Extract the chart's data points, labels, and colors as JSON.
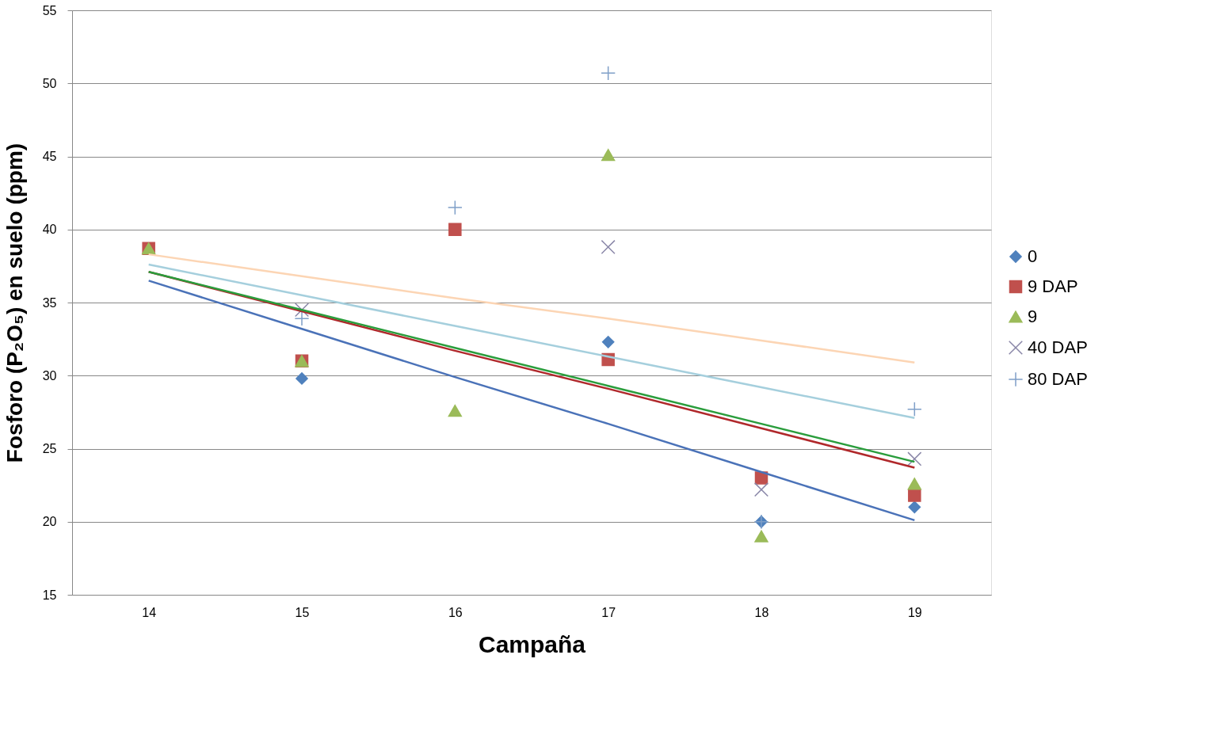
{
  "chart_data": {
    "type": "scatter",
    "xlabel": "Campaña",
    "ylabel": "Fosforo (P₂O₅) en suelo (ppm)",
    "x": [
      14,
      15,
      16,
      17,
      18,
      19
    ],
    "xlim": [
      13.5,
      19.5
    ],
    "xticks": [
      14,
      15,
      16,
      17,
      18,
      19
    ],
    "ylim": [
      15,
      55
    ],
    "yticks": [
      15,
      20,
      25,
      30,
      35,
      40,
      45,
      50,
      55
    ],
    "grid": "y",
    "legend": "right",
    "series": [
      {
        "name": "0",
        "color": "#4f81bd",
        "marker": "diamond",
        "values": [
          null,
          29.8,
          null,
          32.3,
          20.0,
          21.0
        ]
      },
      {
        "name": "9 DAP",
        "color": "#c0504d",
        "marker": "square",
        "values": [
          38.7,
          31.0,
          40.0,
          31.1,
          23.0,
          21.8
        ]
      },
      {
        "name": "9",
        "color": "#9bbb59",
        "marker": "triangle",
        "values": [
          38.7,
          31.0,
          27.6,
          45.1,
          19.0,
          22.6
        ]
      },
      {
        "name": "40 DAP",
        "color": "#8a87a8",
        "marker": "x",
        "values": [
          null,
          34.5,
          null,
          38.8,
          22.2,
          24.3
        ]
      },
      {
        "name": "80 DAP",
        "color": "#7f9fc8",
        "marker": "cross",
        "values": [
          null,
          33.9,
          41.5,
          50.7,
          20.0,
          27.7
        ]
      },
      {
        "type": "line",
        "color": "#4a72b8",
        "values": [
          36.5,
          33.2,
          29.9,
          26.7,
          23.4,
          20.1
        ]
      },
      {
        "type": "line",
        "color": "#b0282b",
        "values": [
          37.1,
          34.4,
          31.7,
          29.1,
          26.4,
          23.7
        ]
      },
      {
        "type": "line",
        "color": "#2a9d3c",
        "values": [
          37.1,
          34.5,
          31.9,
          29.3,
          26.7,
          24.1
        ]
      },
      {
        "type": "line",
        "color": "#a5cfdd",
        "values": [
          37.6,
          35.5,
          33.4,
          31.3,
          29.2,
          27.1
        ]
      },
      {
        "type": "line",
        "color": "#fcd5b4",
        "values": [
          38.3,
          36.8,
          35.3,
          33.9,
          32.4,
          30.9
        ]
      }
    ]
  }
}
